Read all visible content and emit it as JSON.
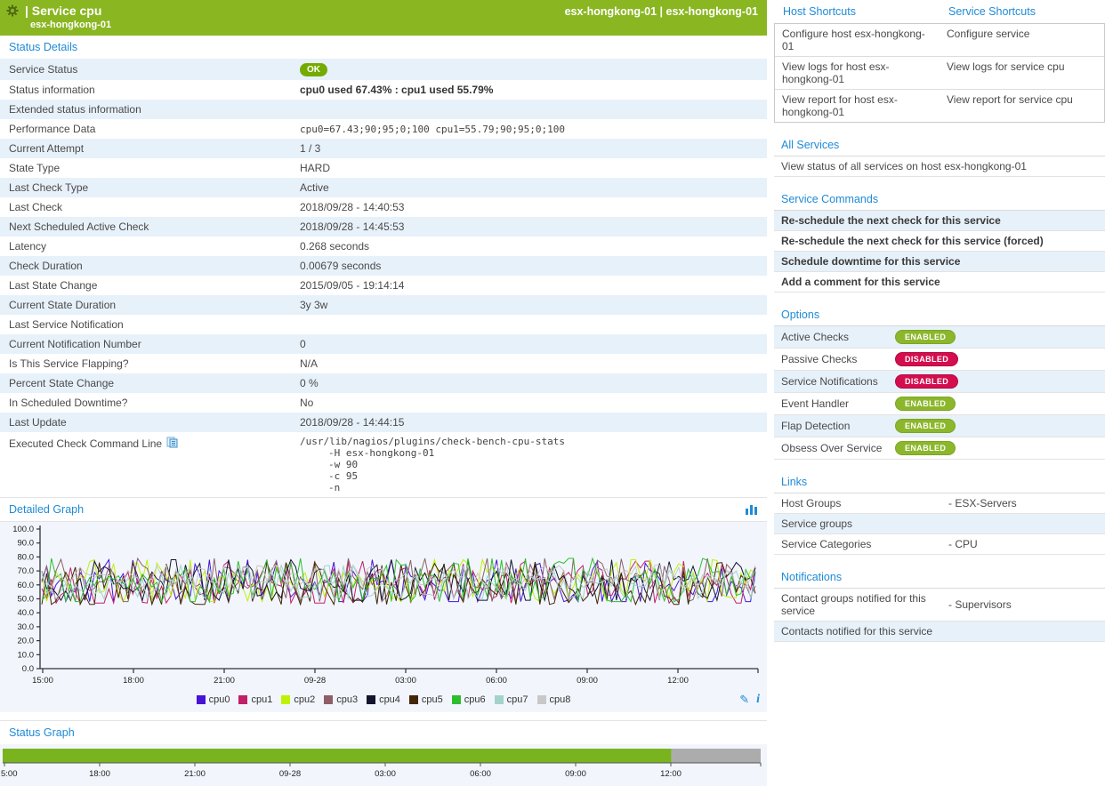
{
  "colors": {
    "header_green": "#8AB622",
    "heading_blue": "#1F8BD6",
    "row_alt_blue": "#E7F1FA",
    "ok_badge_green": "#74AB00",
    "enabled_green": "#8CB72C",
    "disabled_red": "#D40E4E",
    "status_bar_green": "#79B41E",
    "status_bar_gray": "#ACACAC",
    "graph_bg": "#F2F6FC",
    "axis_color": "#30303E"
  },
  "header": {
    "gear_icon": "gear-icon",
    "title": "| Service cpu",
    "subtitle": "esx-hongkong-01",
    "right": "esx-hongkong-01 | esx-hongkong-01"
  },
  "status_details": {
    "heading": "Status Details",
    "rows": [
      {
        "label": "Service Status",
        "value": "OK",
        "style": "badge"
      },
      {
        "label": "Status information",
        "value": "cpu0 used 67.43% : cpu1 used 55.79%",
        "style": "bold"
      },
      {
        "label": "Extended status information",
        "value": "",
        "style": "plain"
      },
      {
        "label": "Performance Data",
        "value": "cpu0=67.43;90;95;0;100 cpu1=55.79;90;95;0;100",
        "style": "mono"
      },
      {
        "label": "Current Attempt",
        "value": "1 / 3",
        "style": "plain"
      },
      {
        "label": "State Type",
        "value": "HARD",
        "style": "plain"
      },
      {
        "label": "Last Check Type",
        "value": "Active",
        "style": "plain"
      },
      {
        "label": "Last Check",
        "value": "2018/09/28 - 14:40:53",
        "style": "plain"
      },
      {
        "label": "Next Scheduled Active Check",
        "value": "2018/09/28 - 14:45:53",
        "style": "plain"
      },
      {
        "label": "Latency",
        "value": "0.268 seconds",
        "style": "plain"
      },
      {
        "label": "Check Duration",
        "value": "0.00679 seconds",
        "style": "plain"
      },
      {
        "label": "Last State Change",
        "value": "2015/09/05 - 19:14:14",
        "style": "plain"
      },
      {
        "label": "Current State Duration",
        "value": "3y 3w",
        "style": "plain"
      },
      {
        "label": "Last Service Notification",
        "value": "",
        "style": "plain"
      },
      {
        "label": "Current Notification Number",
        "value": "0",
        "style": "plain"
      },
      {
        "label": "Is This Service Flapping?",
        "value": "N/A",
        "style": "plain"
      },
      {
        "label": "Percent State Change",
        "value": "0 %",
        "style": "plain"
      },
      {
        "label": "In Scheduled Downtime?",
        "value": "No",
        "style": "plain"
      },
      {
        "label": "Last Update",
        "value": "2018/09/28 - 14:44:15",
        "style": "plain"
      },
      {
        "label": "Executed Check Command Line",
        "style": "mono-block",
        "label_icon": "clipboard-icon",
        "value_lines": [
          "/usr/lib/nagios/plugins/check-bench-cpu-stats",
          "-H esx-hongkong-01",
          "-w 90",
          "-c 95",
          "-n"
        ]
      }
    ]
  },
  "detailed_graph": {
    "heading": "Detailed Graph",
    "chart_icon": "bar-chart-icon",
    "edit_icon": "pencil-icon",
    "info_icon": "info-icon"
  },
  "status_graph": {
    "heading": "Status Graph"
  },
  "chart_data": [
    {
      "type": "line",
      "title": "Detailed Graph",
      "xlabel": "",
      "ylabel": "",
      "ylim": [
        0,
        100
      ],
      "y_ticks": [
        "100.0",
        "90.0",
        "80.0",
        "70.0",
        "60.0",
        "50.0",
        "40.0",
        "30.0",
        "20.0",
        "10.0",
        "0.0"
      ],
      "x_ticks": [
        "15:00",
        "18:00",
        "21:00",
        "09-28",
        "03:00",
        "06:00",
        "09:00",
        "12:00"
      ],
      "grid": false,
      "legend_position": "bottom",
      "note": "Dense 5-minute CPU-usage samples over ~24h; all nine series oscillate randomly in the 45-80% band, values estimated from the y-axis.",
      "series": [
        {
          "name": "cpu0",
          "color": "#4713D6",
          "approx_mean": 62,
          "approx_range": [
            48,
            78
          ],
          "seed": 11
        },
        {
          "name": "cpu1",
          "color": "#C22069",
          "approx_mean": 61,
          "approx_range": [
            47,
            77
          ],
          "seed": 22
        },
        {
          "name": "cpu2",
          "color": "#BFF202",
          "approx_mean": 62,
          "approx_range": [
            48,
            78
          ],
          "seed": 33
        },
        {
          "name": "cpu3",
          "color": "#8E5F68",
          "approx_mean": 62,
          "approx_range": [
            48,
            79
          ],
          "seed": 44
        },
        {
          "name": "cpu4",
          "color": "#14142E",
          "approx_mean": 62,
          "approx_range": [
            49,
            78
          ],
          "seed": 55
        },
        {
          "name": "cpu5",
          "color": "#432605",
          "approx_mean": 60,
          "approx_range": [
            46,
            76
          ],
          "seed": 66
        },
        {
          "name": "cpu6",
          "color": "#2DBE2D",
          "approx_mean": 63,
          "approx_range": [
            48,
            79
          ],
          "seed": 77
        },
        {
          "name": "cpu7",
          "color": "#A3D3CB",
          "approx_mean": 59,
          "approx_range": [
            50,
            74
          ],
          "seed": 88
        },
        {
          "name": "cpu8",
          "color": "#C8C8C8",
          "approx_mean": 66,
          "approx_range": [
            58,
            74
          ],
          "seed": 99
        }
      ]
    },
    {
      "type": "timeline",
      "title": "Status Graph",
      "x_ticks": [
        "5:00",
        "18:00",
        "21:00",
        "09-28",
        "03:00",
        "06:00",
        "09:00",
        "12:00"
      ],
      "segments": [
        {
          "state": "OK",
          "color": "#79B41E",
          "fraction": 0.882
        },
        {
          "state": "NO DATA",
          "color": "#ACACAC",
          "fraction": 0.118
        }
      ]
    }
  ],
  "right": {
    "shortcuts": {
      "host_heading": "Host Shortcuts",
      "service_heading": "Service Shortcuts",
      "rows": [
        [
          "Configure host esx-hongkong-01",
          "Configure service"
        ],
        [
          "View logs for host esx-hongkong-01",
          "View logs for service cpu"
        ],
        [
          "View report for host esx-hongkong-01",
          "View report for service cpu"
        ]
      ]
    },
    "all_services": {
      "heading": "All Services",
      "link": "View status of all services on host esx-hongkong-01"
    },
    "service_commands": {
      "heading": "Service Commands",
      "items": [
        "Re-schedule the next check for this service",
        "Re-schedule the next check for this service (forced)",
        "Schedule downtime for this service",
        "Add a comment for this service"
      ]
    },
    "options": {
      "heading": "Options",
      "rows": [
        {
          "label": "Active Checks",
          "state": "ENABLED"
        },
        {
          "label": "Passive Checks",
          "state": "DISABLED"
        },
        {
          "label": "Service Notifications",
          "state": "DISABLED"
        },
        {
          "label": "Event Handler",
          "state": "ENABLED"
        },
        {
          "label": "Flap Detection",
          "state": "ENABLED"
        },
        {
          "label": "Obsess Over Service",
          "state": "ENABLED"
        }
      ]
    },
    "links": {
      "heading": "Links",
      "rows": [
        {
          "label": "Host Groups",
          "value": "- ESX-Servers"
        },
        {
          "label": "Service groups",
          "value": ""
        },
        {
          "label": "Service Categories",
          "value": "- CPU"
        }
      ]
    },
    "notifications": {
      "heading": "Notifications",
      "rows": [
        {
          "label": "Contact groups notified for this service",
          "value": "- Supervisors"
        },
        {
          "label": "Contacts notified for this service",
          "value": ""
        }
      ]
    }
  }
}
